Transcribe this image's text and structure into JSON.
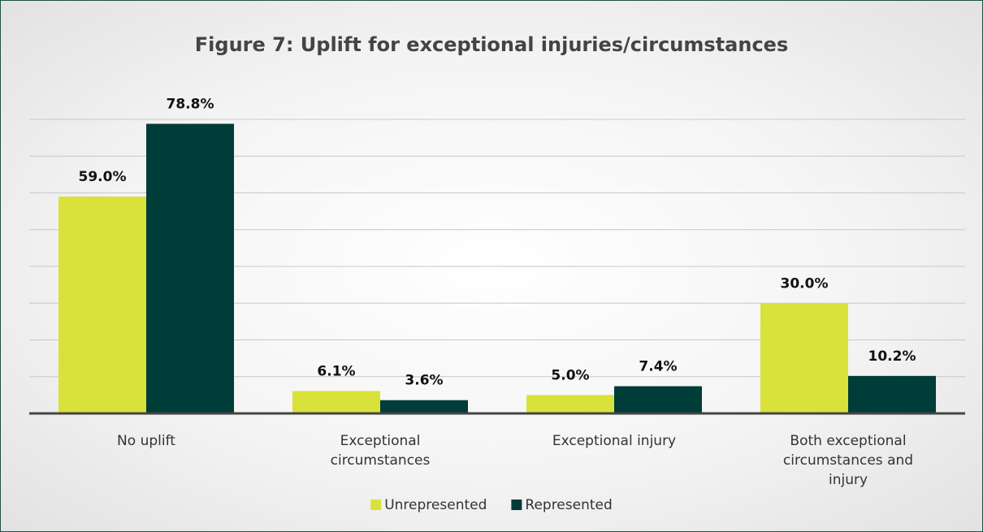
{
  "chart_data": {
    "type": "bar",
    "title": "Figure 7: Uplift for exceptional injuries/circumstances",
    "categories": [
      "No uplift",
      "Exceptional circumstances",
      "Exceptional injury",
      "Both exceptional circumstances and injury"
    ],
    "series": [
      {
        "name": "Unrepresented",
        "color": "#d9e23a",
        "values": [
          59.0,
          6.1,
          5.0,
          30.0
        ],
        "value_labels": [
          "59.0%",
          "6.1%",
          "5.0%",
          "30.0%"
        ]
      },
      {
        "name": "Represented",
        "color": "#003c38",
        "values": [
          78.8,
          3.6,
          7.4,
          10.2
        ],
        "value_labels": [
          "78.8%",
          "3.6%",
          "7.4%",
          "10.2%"
        ]
      }
    ],
    "ylim": [
      0,
      80
    ],
    "yticks": [
      0,
      10,
      20,
      30,
      40,
      50,
      60,
      70,
      80
    ],
    "grid": true,
    "legend": "bottom"
  }
}
